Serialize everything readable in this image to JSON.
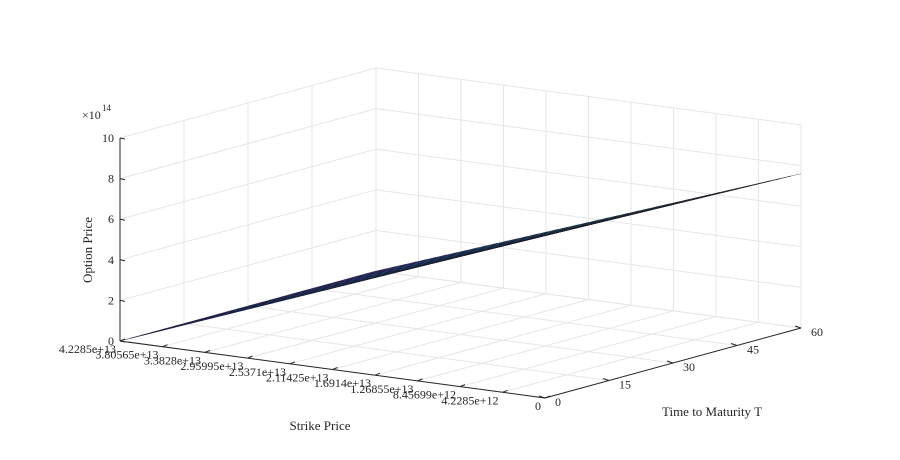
{
  "chart_data": {
    "type": "surface",
    "title": "",
    "zlabel": "Option Price",
    "xlabel": "Strike Price",
    "ylabel": "Time to Maturity T",
    "z_exponent_label": "×10",
    "z_exponent_power": "14",
    "z_ticks": [
      "0",
      "2",
      "4",
      "6",
      "8",
      "10"
    ],
    "zlim": [
      0,
      10
    ],
    "strike_ticks": [
      "4.2285e+13",
      "3.80565e+13",
      "3.3828e+13",
      "2.95995e+13",
      "2.5371e+13",
      "2.11425e+13",
      "1.6914e+13",
      "1.26855e+13",
      "8.45699e+12",
      "4.2285e+12",
      "0"
    ],
    "strike_range": [
      0,
      42285000000000.0
    ],
    "t_ticks": [
      "0",
      "15",
      "30",
      "45",
      "60"
    ],
    "t_range": [
      0,
      60
    ],
    "grid": true,
    "colormap": "parula",
    "surface": {
      "description_values": "option price (x1e14) is approximately linear in strike: highest (~8) at strike 0 for T=0, falling to ~0 at strike 4.2285e+13",
      "corner_values": [
        {
          "strike": 0,
          "T": 0,
          "price": 8.0
        },
        {
          "strike": 0,
          "T": 60,
          "price": 7.6
        },
        {
          "strike": 42285000000000.0,
          "T": 0,
          "price": 0.0
        },
        {
          "strike": 42285000000000.0,
          "T": 60,
          "price": 0.0
        }
      ]
    }
  },
  "colors": {
    "axis": "#262626",
    "grid": "#e6e6e6",
    "cmap_low": "#3e26a8",
    "cmap_mid": "#1fb2a8",
    "cmap_high": "#f9fb0e"
  }
}
